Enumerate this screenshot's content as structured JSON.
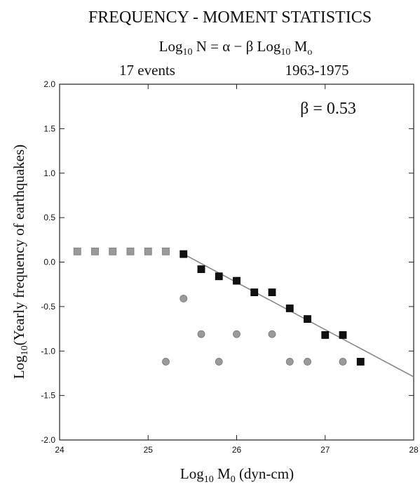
{
  "chart_data": {
    "type": "scatter",
    "title": "FREQUENCY - MOMENT STATISTICS",
    "formula": {
      "lhs_log": "Log",
      "lhs_sub": "10",
      "lhs_var": " N = α  − β Log",
      "rhs_sub": "10",
      "rhs_var": " M",
      "rhs_var_sub": "o"
    },
    "subtitle_left": "17 events",
    "subtitle_right": "1963-1975",
    "annotation": "β  =  0.53",
    "xlabel": {
      "log": "Log",
      "log_sub": "10",
      "var": " M",
      "var_sub": "0",
      "unit": " (dyn-cm)"
    },
    "ylabel": {
      "log": "Log",
      "log_sub": "10",
      "text": "(Yearly frequency of earthquakes)"
    },
    "xlim": [
      24,
      28
    ],
    "ylim": [
      -2.0,
      2.0
    ],
    "x_ticks": [
      {
        "value": 24,
        "label": "24"
      },
      {
        "value": 25,
        "label": "25"
      },
      {
        "value": 26,
        "label": "26"
      },
      {
        "value": 27,
        "label": "27"
      },
      {
        "value": 28,
        "label": "28"
      }
    ],
    "y_ticks": [
      {
        "value": 2.0,
        "label": "2.0"
      },
      {
        "value": 1.5,
        "label": "1.5"
      },
      {
        "value": 1.0,
        "label": "1.0"
      },
      {
        "value": 0.5,
        "label": "0.5"
      },
      {
        "value": 0.0,
        "label": "0.0"
      },
      {
        "value": -0.5,
        "label": "-0.5"
      },
      {
        "value": -1.0,
        "label": "-1.0"
      },
      {
        "value": -1.5,
        "label": "-1.5"
      },
      {
        "value": -2.0,
        "label": "-2.0"
      }
    ],
    "grid": false,
    "series": [
      {
        "marker": "square-gray",
        "color": "#9a9a9a",
        "points": [
          [
            24.2,
            0.12
          ],
          [
            24.4,
            0.12
          ],
          [
            24.6,
            0.12
          ],
          [
            24.8,
            0.12
          ],
          [
            25.0,
            0.12
          ],
          [
            25.2,
            0.12
          ]
        ]
      },
      {
        "marker": "square-black",
        "color": "#111111",
        "points": [
          [
            25.4,
            0.09
          ],
          [
            25.6,
            -0.08
          ],
          [
            25.8,
            -0.16
          ],
          [
            26.0,
            -0.21
          ],
          [
            26.2,
            -0.34
          ],
          [
            26.4,
            -0.34
          ],
          [
            26.6,
            -0.52
          ],
          [
            26.8,
            -0.64
          ],
          [
            27.0,
            -0.82
          ],
          [
            27.2,
            -0.82
          ],
          [
            27.4,
            -1.12
          ]
        ]
      },
      {
        "marker": "circle-gray",
        "color": "#9a9a9a",
        "points": [
          [
            25.2,
            -1.12
          ],
          [
            25.4,
            -0.41
          ],
          [
            25.6,
            -0.81
          ],
          [
            25.8,
            -1.12
          ],
          [
            26.0,
            -0.81
          ],
          [
            26.4,
            -0.81
          ],
          [
            26.6,
            -1.12
          ],
          [
            26.8,
            -1.12
          ],
          [
            27.2,
            -1.12
          ]
        ]
      },
      {
        "marker": "line",
        "color": "#888888",
        "points": [
          [
            25.4,
            0.09
          ],
          [
            28.0,
            -1.29
          ]
        ]
      }
    ]
  }
}
